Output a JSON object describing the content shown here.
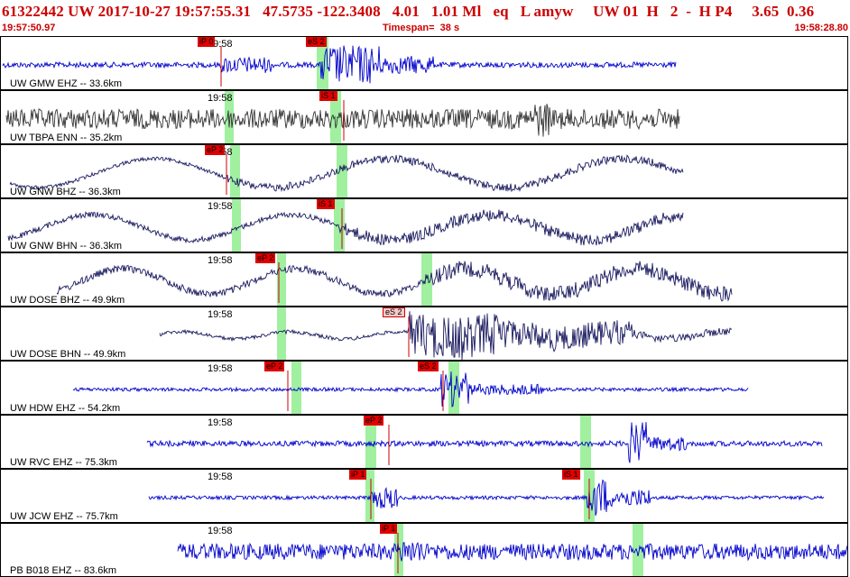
{
  "header": {
    "title": "61322442 UW 2017-10-27 19:57:55.31   47.5735 -122.3408   4.01   1.01 Ml   eq   L amyw     UW 01  H   2  -  H P4     3.65  0.36",
    "start_time": "19:57:50.97",
    "timespan": "Timespan=  38 s",
    "end_time": "19:58:28.80"
  },
  "colors": {
    "accent": "#cc0000",
    "pick_window": "#a0f0a0",
    "blue_trace": "#0000cc",
    "gray_trace": "#333333",
    "dark_trace": "#1a1a60"
  },
  "traces": [
    {
      "label": "UW GMW EHZ -- 33.6km",
      "time_tick": "19:58",
      "color": "blue",
      "picks": [
        {
          "text": "iP 0",
          "style": "red"
        },
        {
          "text": "eS 2",
          "style": "red"
        }
      ]
    },
    {
      "label": "UW TBPA ENN -- 35.2km",
      "time_tick": "19:58",
      "color": "gray",
      "picks": [
        {
          "text": "iS 1",
          "style": "red"
        }
      ]
    },
    {
      "label": "UW GNW BHZ -- 36.3km",
      "time_tick": "19:58",
      "color": "dark",
      "picks": [
        {
          "text": "eP 2",
          "style": "red"
        }
      ]
    },
    {
      "label": "UW GNW BHN -- 36.3km",
      "time_tick": "19:58",
      "color": "dark",
      "picks": [
        {
          "text": "iS 1",
          "style": "red"
        }
      ]
    },
    {
      "label": "UW DOSE BHZ -- 49.9km",
      "time_tick": "19:58",
      "color": "dark",
      "picks": [
        {
          "text": "eP 2",
          "style": "red"
        }
      ]
    },
    {
      "label": "UW DOSE BHN -- 49.9km",
      "time_tick": "19:58",
      "color": "dark",
      "picks": [
        {
          "text": "eS 2",
          "style": "pink"
        }
      ]
    },
    {
      "label": "UW HDW EHZ -- 54.2km",
      "time_tick": "19:58",
      "color": "blue",
      "picks": [
        {
          "text": "eP 2",
          "style": "red"
        },
        {
          "text": "eS 2",
          "style": "red"
        }
      ]
    },
    {
      "label": "UW RVC EHZ -- 75.3km",
      "time_tick": "19:58",
      "color": "blue",
      "picks": [
        {
          "text": "eP 2",
          "style": "red"
        }
      ]
    },
    {
      "label": "UW JCW EHZ -- 75.7km",
      "time_tick": "19:58",
      "color": "blue",
      "picks": [
        {
          "text": "iP 1",
          "style": "red"
        },
        {
          "text": "iS 1",
          "style": "red"
        }
      ]
    },
    {
      "label": "PB B018 EHZ -- 83.6km",
      "time_tick": "19:58",
      "color": "blue",
      "picks": [
        {
          "text": "iP 1",
          "style": "red"
        }
      ]
    }
  ]
}
